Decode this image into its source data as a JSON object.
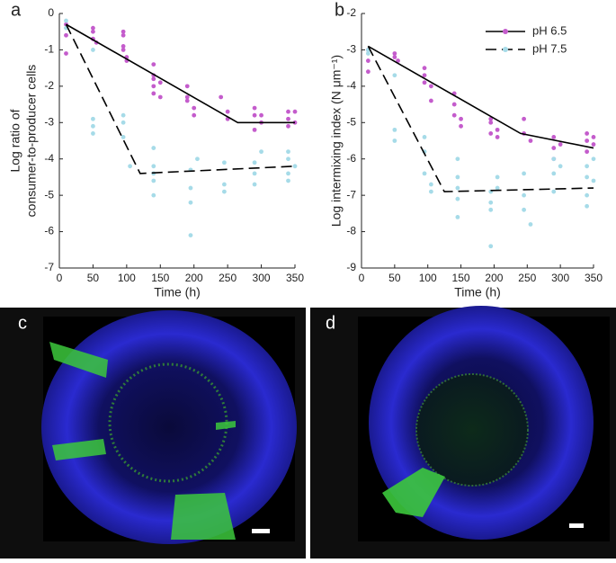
{
  "chart_data": [
    {
      "type": "scatter",
      "panel_label": "a",
      "xlabel": "Time (h)",
      "ylabel": [
        "Log ratio of",
        "consumer-to-producer cells"
      ],
      "xlim": [
        0,
        350
      ],
      "ylim": [
        -7,
        0
      ],
      "xticks": [
        0,
        50,
        100,
        150,
        200,
        250,
        300,
        350
      ],
      "yticks": [
        -7,
        -6,
        -5,
        -4,
        -3,
        -2,
        -1,
        0
      ],
      "legend": false,
      "series": [
        {
          "name": "pH 6.5",
          "color": "#c45ccc",
          "line_style": "solid",
          "x": [
            10,
            10,
            10,
            50,
            50,
            50,
            50,
            55,
            95,
            95,
            95,
            95,
            100,
            100,
            140,
            140,
            140,
            140,
            140,
            150,
            150,
            190,
            190,
            190,
            200,
            200,
            240,
            250,
            250,
            290,
            290,
            290,
            300,
            300,
            340,
            340,
            340,
            350,
            350
          ],
          "values": [
            -0.3,
            -0.6,
            -1.1,
            -0.4,
            -0.5,
            -0.7,
            -0.7,
            -0.8,
            -0.5,
            -0.6,
            -0.9,
            -1.0,
            -1.2,
            -1.3,
            -1.4,
            -1.7,
            -1.8,
            -2.0,
            -2.2,
            -1.9,
            -2.3,
            -2.0,
            -2.3,
            -2.4,
            -2.6,
            -2.8,
            -2.3,
            -2.7,
            -2.9,
            -2.6,
            -2.8,
            -3.2,
            -2.8,
            -3.0,
            -2.7,
            -2.9,
            -3.1,
            -2.7,
            -3.0
          ],
          "fit_x": [
            10,
            265,
            350
          ],
          "fit_values": [
            -0.3,
            -3,
            -3
          ]
        },
        {
          "name": "pH 7.5",
          "color": "#a6dbe8",
          "line_style": "dashed",
          "x": [
            10,
            10,
            50,
            50,
            50,
            50,
            95,
            95,
            95,
            105,
            140,
            140,
            140,
            140,
            140,
            195,
            195,
            195,
            195,
            205,
            245,
            245,
            245,
            290,
            290,
            290,
            300,
            340,
            340,
            340,
            340,
            350
          ],
          "values": [
            -0.2,
            -0.4,
            -1.0,
            -2.9,
            -3.1,
            -3.3,
            -2.8,
            -3.0,
            -3.4,
            -4.2,
            -3.7,
            -4.2,
            -4.4,
            -4.6,
            -5.0,
            -4.3,
            -4.8,
            -5.2,
            -6.1,
            -4.0,
            -4.1,
            -4.7,
            -4.9,
            -4.1,
            -4.4,
            -4.7,
            -3.8,
            -3.8,
            -4.0,
            -4.4,
            -4.6,
            -4.2
          ],
          "fit_x": [
            10,
            120,
            350
          ],
          "fit_values": [
            -0.3,
            -4.4,
            -4.2
          ]
        }
      ]
    },
    {
      "type": "scatter",
      "panel_label": "b",
      "xlabel": "Time (h)",
      "ylabel": [
        "Log intermixing index (N μm⁻¹)"
      ],
      "xlim": [
        0,
        350
      ],
      "ylim": [
        -9,
        -2
      ],
      "xticks": [
        0,
        50,
        100,
        150,
        200,
        250,
        300,
        350
      ],
      "yticks": [
        -9,
        -8,
        -7,
        -6,
        -5,
        -4,
        -3,
        -2
      ],
      "legend": true,
      "series": [
        {
          "name": "pH 6.5",
          "color": "#c45ccc",
          "line_style": "solid",
          "x": [
            10,
            10,
            10,
            50,
            50,
            55,
            95,
            95,
            95,
            105,
            105,
            140,
            140,
            140,
            150,
            150,
            195,
            195,
            195,
            205,
            205,
            245,
            245,
            255,
            290,
            290,
            290,
            300,
            340,
            340,
            340,
            350,
            350
          ],
          "values": [
            -3.0,
            -3.3,
            -3.6,
            -3.1,
            -3.2,
            -3.3,
            -3.5,
            -3.7,
            -3.9,
            -4.0,
            -4.4,
            -4.2,
            -4.5,
            -4.8,
            -4.9,
            -5.1,
            -4.9,
            -5.0,
            -5.3,
            -5.2,
            -5.4,
            -4.9,
            -5.3,
            -5.5,
            -5.4,
            -5.7,
            -6.0,
            -5.6,
            -5.3,
            -5.5,
            -5.8,
            -5.4,
            -5.6
          ],
          "fit_x": [
            10,
            240,
            350
          ],
          "fit_values": [
            -2.9,
            -5.3,
            -5.7
          ]
        },
        {
          "name": "pH 7.5",
          "color": "#a6dbe8",
          "line_style": "dashed",
          "x": [
            10,
            10,
            50,
            50,
            50,
            95,
            95,
            95,
            105,
            105,
            145,
            145,
            145,
            145,
            145,
            195,
            195,
            195,
            195,
            205,
            205,
            245,
            245,
            245,
            255,
            290,
            290,
            290,
            300,
            340,
            340,
            340,
            340,
            350,
            350
          ],
          "values": [
            -3.0,
            -3.1,
            -3.7,
            -5.2,
            -5.5,
            -5.4,
            -5.8,
            -6.4,
            -6.7,
            -6.9,
            -6.0,
            -6.5,
            -6.8,
            -7.1,
            -7.6,
            -6.9,
            -7.2,
            -7.4,
            -8.4,
            -6.5,
            -6.8,
            -6.4,
            -7.0,
            -7.4,
            -7.8,
            -6.0,
            -6.4,
            -6.9,
            -6.2,
            -6.2,
            -6.5,
            -7.0,
            -7.3,
            -6.0,
            -6.6
          ],
          "fit_x": [
            10,
            125,
            350
          ],
          "fit_values": [
            -2.9,
            -6.9,
            -6.8
          ]
        }
      ]
    }
  ],
  "images": [
    {
      "panel_label": "c"
    },
    {
      "panel_label": "d"
    }
  ]
}
